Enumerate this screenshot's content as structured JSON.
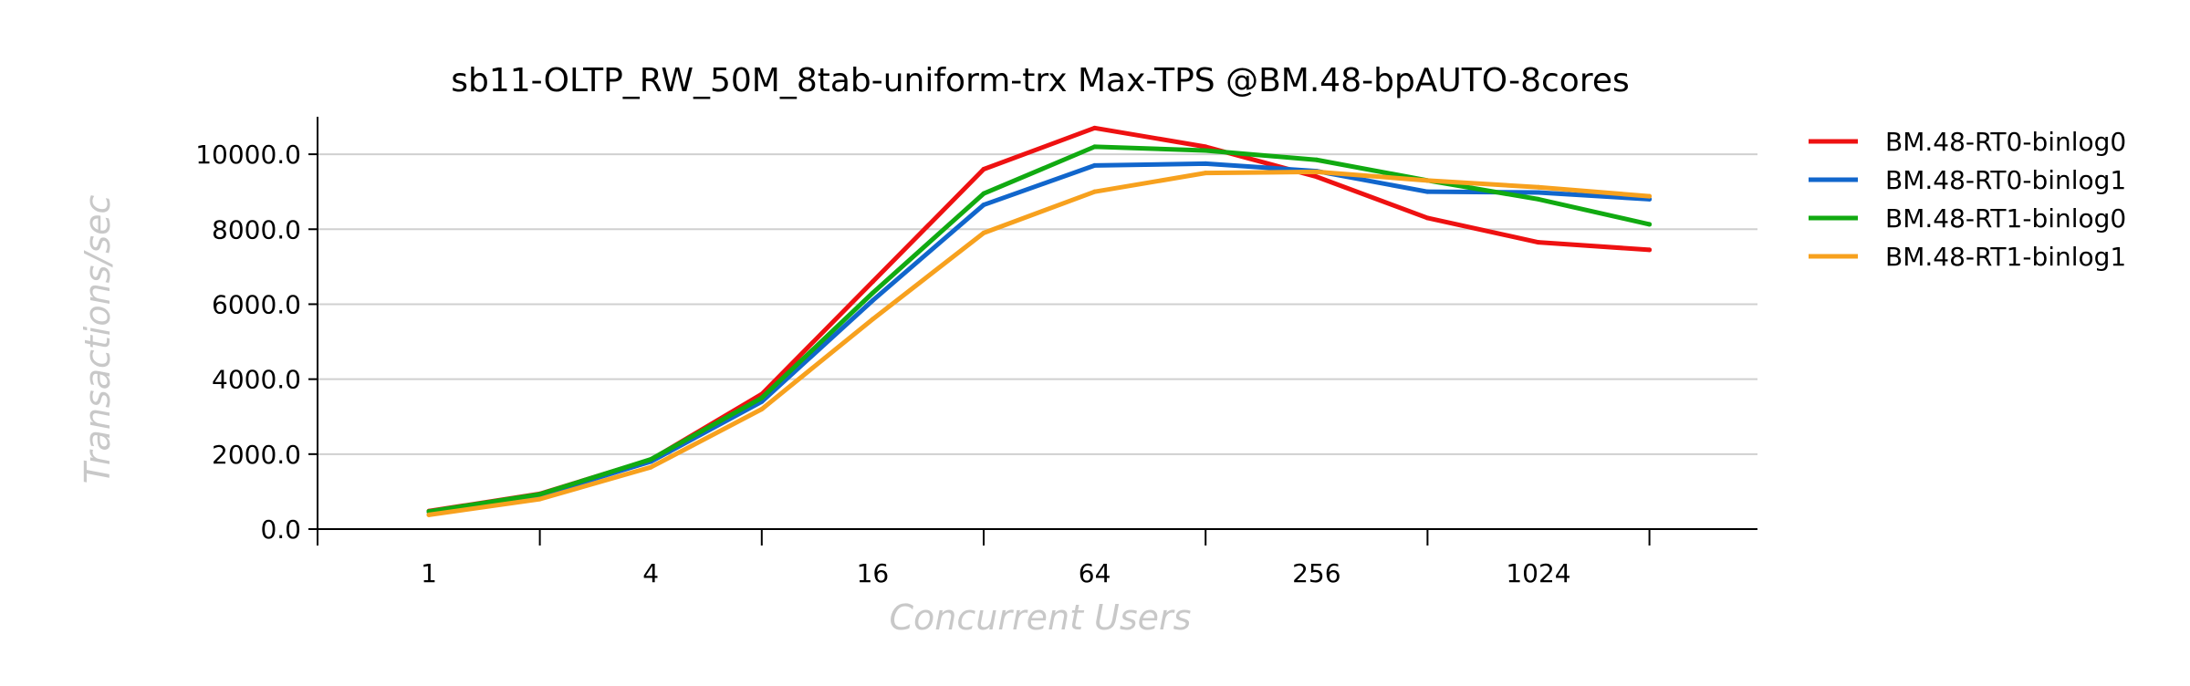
{
  "chart_data": {
    "type": "line",
    "title": "sb11-OLTP_RW_50M_8tab-uniform-trx Max-TPS @BM.48-bpAUTO-8cores",
    "xlabel": "Concurrent Users",
    "ylabel": "Transactions/sec",
    "x_scale": "log2",
    "x": [
      1,
      2,
      4,
      8,
      16,
      32,
      64,
      128,
      256,
      512,
      1024,
      2048
    ],
    "x_tick_labels": [
      "1",
      "4",
      "16",
      "64",
      "256",
      "1024"
    ],
    "x_tick_values": [
      1,
      4,
      16,
      64,
      256,
      1024
    ],
    "y_tick_labels": [
      "0.0",
      "2000.0",
      "4000.0",
      "6000.0",
      "8000.0",
      "10000.0"
    ],
    "y_tick_values": [
      0,
      2000,
      4000,
      6000,
      8000,
      10000
    ],
    "ylim": [
      0,
      11000
    ],
    "grid": "horizontal",
    "legend_position": "right",
    "series": [
      {
        "name": "BM.48-RT0-binlog0",
        "color": "#ee1111",
        "values": [
          480,
          940,
          1850,
          3600,
          6600,
          9600,
          10700,
          10200,
          9400,
          8300,
          7650,
          7450
        ]
      },
      {
        "name": "BM.48-RT0-binlog1",
        "color": "#1166cc",
        "values": [
          460,
          900,
          1800,
          3400,
          6100,
          8650,
          9700,
          9750,
          9550,
          9000,
          8980,
          8800
        ]
      },
      {
        "name": "BM.48-RT1-binlog0",
        "color": "#11aa11",
        "values": [
          470,
          930,
          1860,
          3500,
          6300,
          8950,
          10200,
          10100,
          9850,
          9300,
          8800,
          8130
        ]
      },
      {
        "name": "BM.48-RT1-binlog1",
        "color": "#f7a11e",
        "values": [
          380,
          800,
          1650,
          3200,
          5600,
          7900,
          9000,
          9500,
          9530,
          9300,
          9120,
          8880
        ]
      }
    ]
  }
}
